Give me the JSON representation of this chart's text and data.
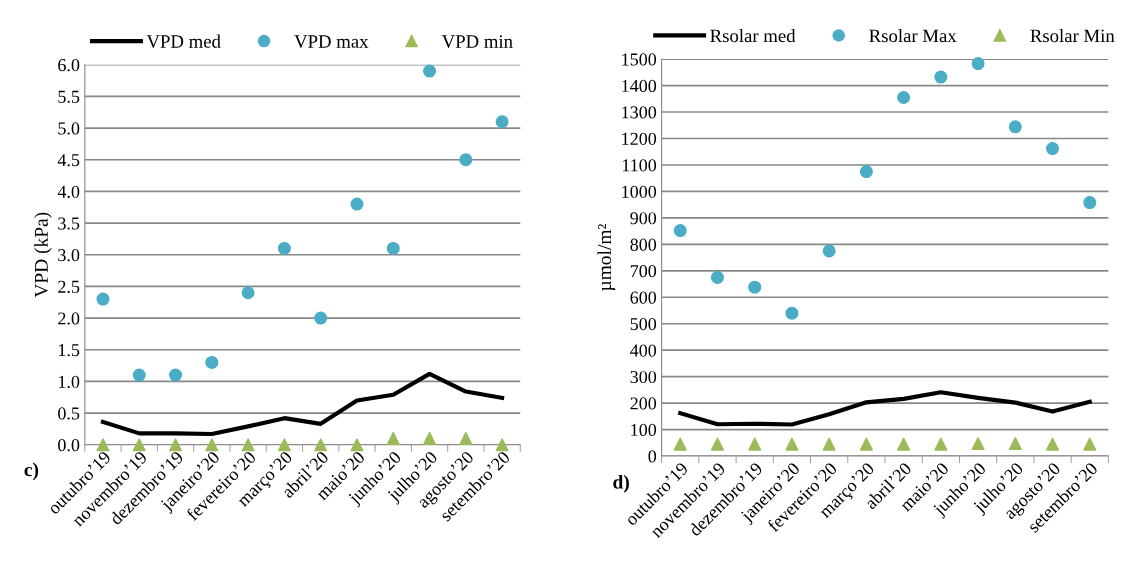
{
  "chart_data": [
    {
      "type": "line",
      "ylabel": "VPD (kPa)",
      "ylim": [
        0,
        6.0
      ],
      "yticks": [
        {
          "value": 0,
          "label": "0.0"
        },
        {
          "value": 0.5,
          "label": "0.5"
        },
        {
          "value": 1,
          "label": "1.0"
        },
        {
          "value": 1.5,
          "label": "1.5"
        },
        {
          "value": 2,
          "label": "2.0"
        },
        {
          "value": 2.5,
          "label": "2.5"
        },
        {
          "value": 3,
          "label": "3.0"
        },
        {
          "value": 3.5,
          "label": "3.5"
        },
        {
          "value": 4,
          "label": "4.0"
        },
        {
          "value": 4.5,
          "label": "4.5"
        },
        {
          "value": 5,
          "label": "5.0"
        },
        {
          "value": 5.5,
          "label": "5.5"
        },
        {
          "value": 6,
          "label": "6.0"
        }
      ],
      "grid": "y",
      "legend": "top",
      "categories": [
        "outubro’19",
        "novembro’19",
        "dezembro’19",
        "janeiro’20",
        "fevereiro’20",
        "março’20",
        "abril’20",
        "maio’20",
        "junho’20",
        "julho’20",
        "agosto’20",
        "setembro’20"
      ],
      "annotations": [
        "c)"
      ],
      "series": [
        {
          "name": "VPD med",
          "color": "#000000",
          "marker": "none",
          "values": [
            0.36,
            0.18,
            0.18,
            0.17,
            0.29,
            0.42,
            0.33,
            0.7,
            0.79,
            1.12,
            0.84,
            0.74
          ]
        },
        {
          "name": "VPD max",
          "type": "scatter",
          "color": "#4bacc6",
          "marker": "circle",
          "values": [
            2.3,
            1.1,
            1.1,
            1.3,
            2.4,
            3.1,
            2.0,
            3.8,
            3.1,
            5.9,
            4.5,
            5.1
          ]
        },
        {
          "name": "VPD min",
          "type": "scatter",
          "color": "#9bbb59",
          "marker": "triangle",
          "values": [
            0,
            0,
            0,
            0,
            0,
            0,
            0,
            0,
            0.1,
            0.1,
            0.1,
            0
          ]
        }
      ]
    },
    {
      "type": "line",
      "ylabel": "µmol/m²",
      "ylim": [
        0,
        1500
      ],
      "yticks": [
        0,
        100,
        200,
        300,
        400,
        500,
        600,
        700,
        800,
        900,
        1000,
        1100,
        1200,
        1300,
        1400,
        1500
      ],
      "grid": "y",
      "legend": "top",
      "categories": [
        "outubro’19",
        "novembro’19",
        "dezembro’19",
        "janeiro’20",
        "fevereiro’20",
        "março’20",
        "abril’20",
        "maio’20",
        "junho’20",
        "julho’20",
        "agosto’20",
        "setembro’20"
      ],
      "annotations": [
        "d)"
      ],
      "series": [
        {
          "name": "Rsolar med",
          "color": "#000000",
          "marker": "none",
          "values": [
            162,
            120,
            122,
            119,
            158,
            203,
            216,
            241,
            220,
            202,
            168,
            205
          ]
        },
        {
          "name": "Rsolar Max",
          "type": "scatter",
          "color": "#4bacc6",
          "marker": "circle",
          "values": [
            852,
            675,
            638,
            540,
            775,
            1075,
            1355,
            1432,
            1483,
            1244,
            1162,
            958
          ]
        },
        {
          "name": "Rsolar Min",
          "type": "scatter",
          "color": "#9bbb59",
          "marker": "triangle",
          "values": [
            45,
            45,
            45,
            45,
            45,
            45,
            45,
            45,
            47,
            47,
            45,
            45
          ]
        }
      ]
    }
  ]
}
